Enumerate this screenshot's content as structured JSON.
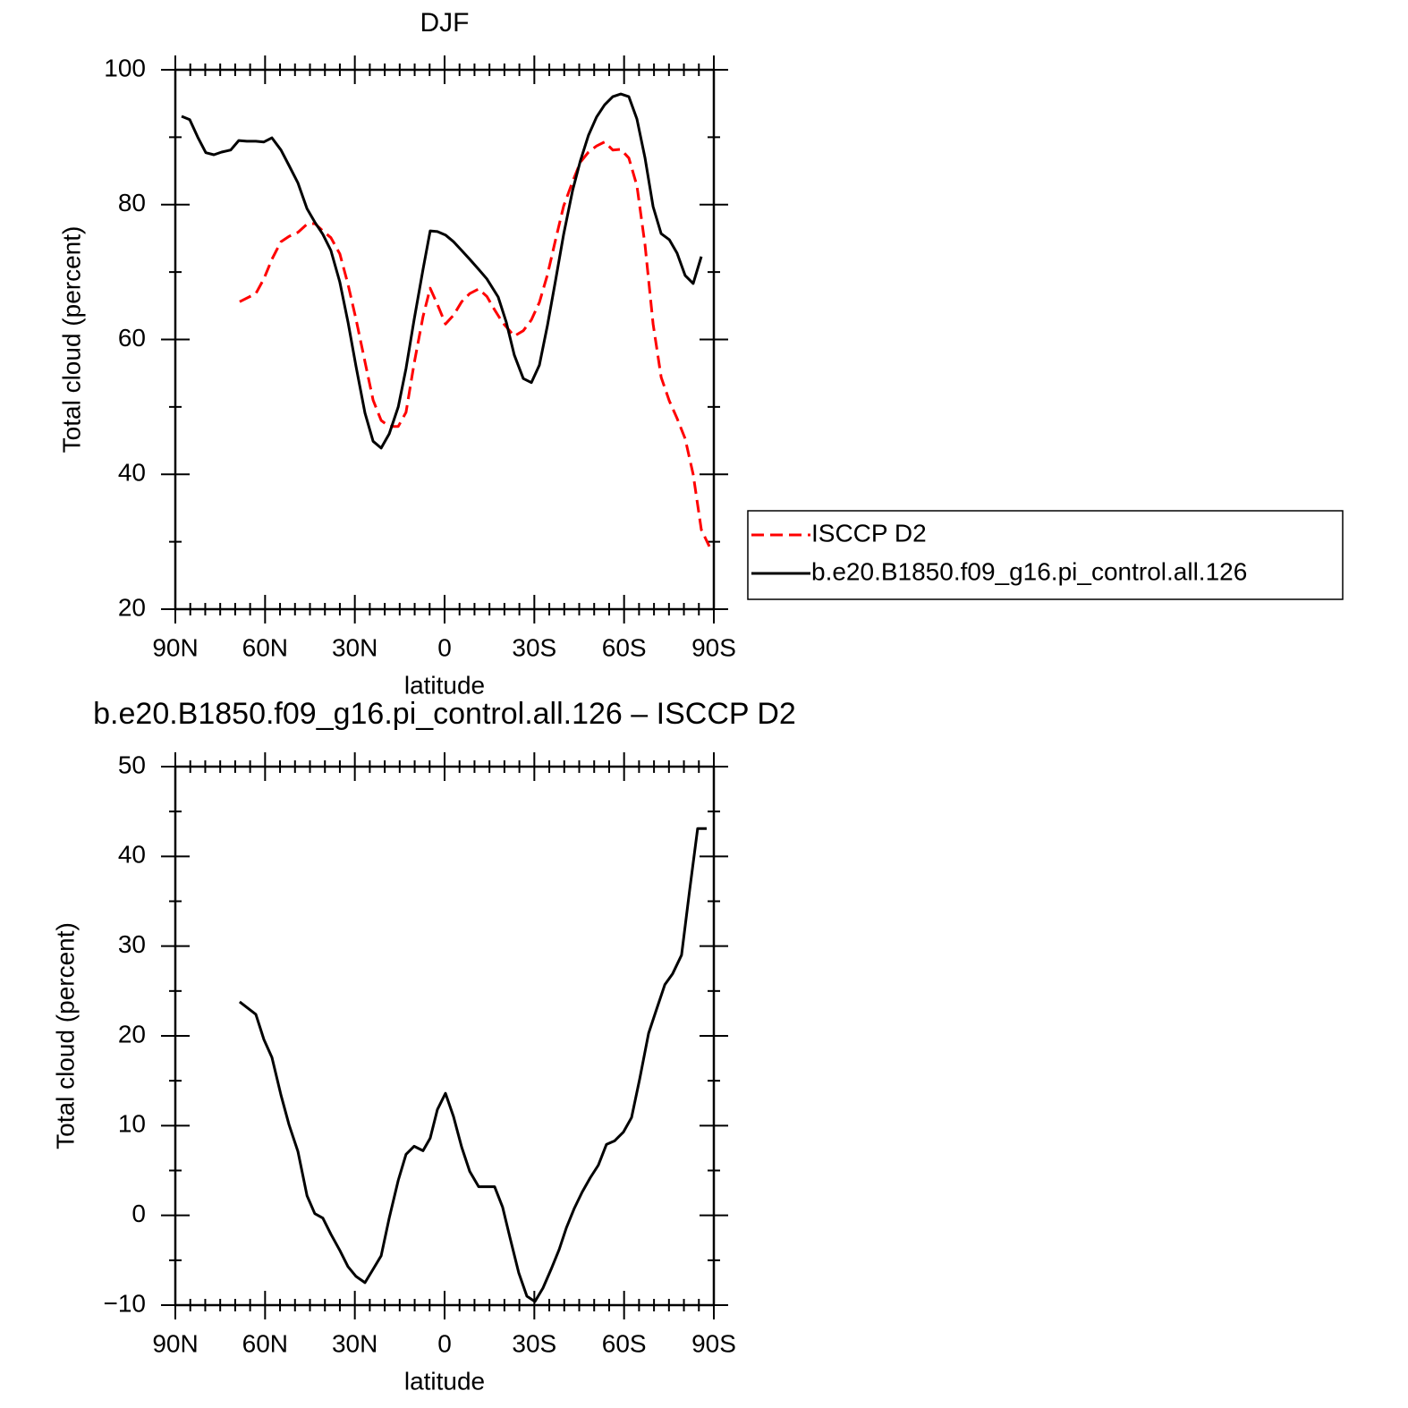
{
  "chart_data": [
    {
      "type": "line",
      "title": "DJF",
      "xlabel": "latitude",
      "ylabel": "Total cloud (percent)",
      "xlim": [
        90,
        -90
      ],
      "xticks": [
        {
          "value": 90,
          "label": "90N"
        },
        {
          "value": 60,
          "label": "60N"
        },
        {
          "value": 30,
          "label": "30N"
        },
        0,
        {
          "value": -30,
          "label": "30S"
        },
        {
          "value": -60,
          "label": "60S"
        },
        {
          "value": -90,
          "label": "90S"
        }
      ],
      "ylim": [
        20,
        100
      ],
      "yticks": [
        20,
        40,
        60,
        80,
        100
      ],
      "legend": "right",
      "series": [
        {
          "name": "ISCCP D2",
          "color": "#ff0000",
          "line_style": "dashed",
          "x": [
            68.5,
            63.1,
            60.4,
            57.7,
            54.7,
            52.0,
            49.0,
            46.0,
            43.4,
            40.7,
            38.0,
            35.0,
            32.3,
            29.6,
            26.6,
            23.9,
            21.2,
            18.5,
            15.5,
            12.9,
            10.2,
            7.2,
            4.8,
            2.4,
            -0.3,
            -3.0,
            -5.7,
            -8.4,
            -11.4,
            -14.1,
            -16.7,
            -19.4,
            -23.3,
            -26.3,
            -29.0,
            -31.7,
            -34.4,
            -37.1,
            -39.8,
            -42.8,
            -45.4,
            -48.1,
            -50.8,
            -53.5,
            -56.2,
            -58.9,
            -61.6,
            -64.3,
            -67.0,
            -69.7,
            -72.4,
            -75.1,
            -77.7,
            -80.4,
            -83.1,
            -85.8,
            -88.5
          ],
          "values": [
            65.6,
            66.8,
            69.0,
            71.9,
            74.5,
            75.3,
            75.9,
            77.1,
            77.2,
            76.1,
            75.1,
            72.7,
            68.2,
            63.0,
            56.7,
            51.0,
            48.0,
            47.1,
            47.1,
            49.2,
            56.4,
            63.4,
            67.6,
            65.2,
            62.3,
            63.6,
            65.6,
            66.8,
            67.5,
            66.4,
            64.4,
            62.5,
            60.5,
            61.3,
            62.9,
            65.5,
            69.6,
            74.8,
            79.8,
            83.4,
            86.3,
            87.8,
            88.7,
            89.3,
            88.1,
            88.2,
            86.9,
            82.8,
            74.0,
            62.3,
            54.4,
            50.9,
            48.3,
            45.3,
            40.0,
            31.8,
            29.3
          ]
        },
        {
          "name": "b.e20.B1850.f09_g16.pi_control.all.126",
          "color": "#000000",
          "line_style": "solid",
          "x": [
            87.9,
            85.2,
            82.5,
            79.8,
            77.1,
            74.5,
            71.5,
            68.8,
            66.1,
            63.1,
            60.4,
            57.7,
            54.7,
            52.0,
            49.0,
            46.0,
            43.4,
            40.7,
            38.0,
            35.0,
            32.3,
            29.6,
            26.6,
            23.9,
            21.2,
            18.5,
            15.5,
            12.9,
            10.2,
            7.2,
            4.8,
            2.4,
            -0.3,
            -3.0,
            -5.7,
            -8.4,
            -11.4,
            -14.1,
            -17.9,
            -20.6,
            -23.3,
            -26.3,
            -29.0,
            -31.7,
            -34.4,
            -37.1,
            -39.8,
            -42.8,
            -45.4,
            -48.1,
            -50.8,
            -53.5,
            -56.2,
            -58.9,
            -61.6,
            -64.3,
            -67.0,
            -69.7,
            -72.4,
            -75.1,
            -77.7,
            -80.4,
            -83.1,
            -85.8
          ],
          "values": [
            93.1,
            92.6,
            90.0,
            87.7,
            87.4,
            87.8,
            88.1,
            89.5,
            89.4,
            89.4,
            89.3,
            89.9,
            88.1,
            85.8,
            83.2,
            79.4,
            77.4,
            75.6,
            73.2,
            68.5,
            62.6,
            56.0,
            49.1,
            44.9,
            43.9,
            46.0,
            50.0,
            55.7,
            62.9,
            70.4,
            76.1,
            76.0,
            75.5,
            74.5,
            73.2,
            71.9,
            70.4,
            69.0,
            66.3,
            62.6,
            57.7,
            54.2,
            53.6,
            56.2,
            62.1,
            68.8,
            75.6,
            82.1,
            86.5,
            90.3,
            93.0,
            94.8,
            96.0,
            96.4,
            96.0,
            92.7,
            86.9,
            79.7,
            75.7,
            74.8,
            72.8,
            69.5,
            68.3,
            72.3
          ]
        }
      ]
    },
    {
      "type": "line",
      "title": "b.e20.B1850.f09_g16.pi_control.all.126 – ISCCP D2",
      "xlabel": "latitude",
      "ylabel": "Total cloud (percent)",
      "xlim": [
        90,
        -90
      ],
      "xticks": [
        {
          "value": 90,
          "label": "90N"
        },
        {
          "value": 60,
          "label": "60N"
        },
        {
          "value": 30,
          "label": "30N"
        },
        0,
        {
          "value": -30,
          "label": "30S"
        },
        {
          "value": -60,
          "label": "60S"
        },
        {
          "value": -90,
          "label": "90S"
        }
      ],
      "ylim": [
        -10,
        50
      ],
      "yticks": [
        {
          "value": -10,
          "label": "−10"
        },
        0,
        10,
        20,
        30,
        40,
        50
      ],
      "color": "#000000",
      "x": [
        68.5,
        63.1,
        60.4,
        57.7,
        54.7,
        52.0,
        49.0,
        46.0,
        43.4,
        40.7,
        38.0,
        35.0,
        32.3,
        29.6,
        26.6,
        23.9,
        21.2,
        18.5,
        15.5,
        12.9,
        10.2,
        7.2,
        4.8,
        2.4,
        -0.3,
        -3.0,
        -5.7,
        -8.4,
        -11.4,
        -14.1,
        -16.7,
        -19.4,
        -21.8,
        -24.8,
        -27.5,
        -30.2,
        -32.9,
        -35.6,
        -38.3,
        -40.7,
        -43.4,
        -46.0,
        -48.7,
        -51.4,
        -54.1,
        -56.8,
        -59.8,
        -62.5,
        -65.2,
        -68.2,
        -70.9,
        -73.6,
        -76.2,
        -79.2,
        -81.9,
        -84.6,
        -87.6
      ],
      "values": [
        23.8,
        22.4,
        19.6,
        17.6,
        13.4,
        10.1,
        7.1,
        2.2,
        0.2,
        -0.3,
        -2.1,
        -3.9,
        -5.7,
        -6.8,
        -7.5,
        -6.0,
        -4.5,
        -0.3,
        3.9,
        6.8,
        7.7,
        7.2,
        8.6,
        11.8,
        13.6,
        11.0,
        7.6,
        4.9,
        3.2,
        3.2,
        3.2,
        0.9,
        -2.4,
        -6.4,
        -9.0,
        -9.6,
        -8.1,
        -6.0,
        -3.8,
        -1.4,
        0.8,
        2.6,
        4.2,
        5.6,
        7.9,
        8.3,
        9.3,
        10.9,
        15.2,
        20.3,
        23.0,
        25.7,
        26.9,
        29.0,
        36.2,
        43.1,
        43.1
      ]
    }
  ]
}
